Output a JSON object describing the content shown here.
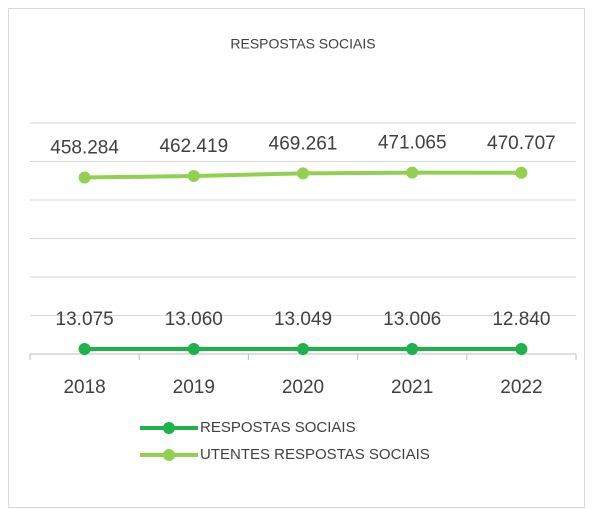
{
  "chart_data": {
    "type": "line",
    "title": "RESPOSTAS SOCIAIS",
    "categories": [
      "2018",
      "2019",
      "2020",
      "2021",
      "2022"
    ],
    "series": [
      {
        "name": "RESPOSTAS SOCIAIS",
        "color": "#1db34b",
        "values": [
          13075,
          13060,
          13049,
          13006,
          12840
        ],
        "value_labels": [
          "13.075",
          "13.060",
          "13.049",
          "13.006",
          "12.840"
        ]
      },
      {
        "name": "UTENTES RESPOSTAS SOCIAIS",
        "color": "#92d050",
        "values": [
          458284,
          462419,
          469261,
          471065,
          470707
        ],
        "value_labels": [
          "458.284",
          "462.419",
          "469.261",
          "471.065",
          "470.707"
        ]
      }
    ],
    "ylim": [
      0,
      600000
    ],
    "yticks": [
      0,
      100000,
      200000,
      300000,
      400000,
      500000,
      600000
    ],
    "grid": true,
    "legend": "bottom"
  }
}
